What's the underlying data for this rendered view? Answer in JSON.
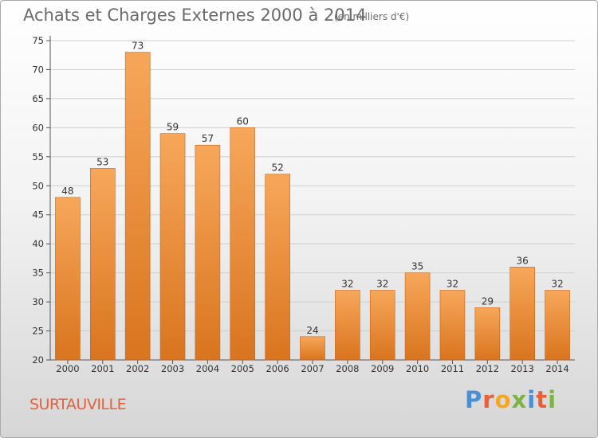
{
  "title": "Achats et Charges Externes 2000 à 2014",
  "subtitle": "(en milliers d'€)",
  "commune": "SURTAUVILLE",
  "logo": {
    "letters": [
      "P",
      "r",
      "o",
      "x",
      "i",
      "t",
      "i"
    ],
    "colors": [
      "#4a8fd6",
      "#e8603a",
      "#f5a623",
      "#7cb342",
      "#4a8fd6",
      "#e8603a",
      "#7cb342"
    ]
  },
  "colors": {
    "bar_top": "#f7a75a",
    "bar_bottom": "#d9741f",
    "title": "#6b6b6b",
    "commune": "#e8603a"
  },
  "chart_data": {
    "type": "bar",
    "title": "Achats et Charges Externes 2000 à 2014",
    "subtitle": "(en milliers d'€)",
    "categories": [
      "2000",
      "2001",
      "2002",
      "2003",
      "2004",
      "2005",
      "2006",
      "2007",
      "2008",
      "2009",
      "2010",
      "2011",
      "2012",
      "2013",
      "2014"
    ],
    "values": [
      48,
      53,
      73,
      59,
      57,
      60,
      52,
      24,
      32,
      32,
      35,
      32,
      29,
      36,
      32
    ],
    "ylim": [
      20,
      75
    ],
    "yticks": [
      20,
      25,
      30,
      35,
      40,
      45,
      50,
      55,
      60,
      65,
      70,
      75
    ],
    "grid": true
  }
}
